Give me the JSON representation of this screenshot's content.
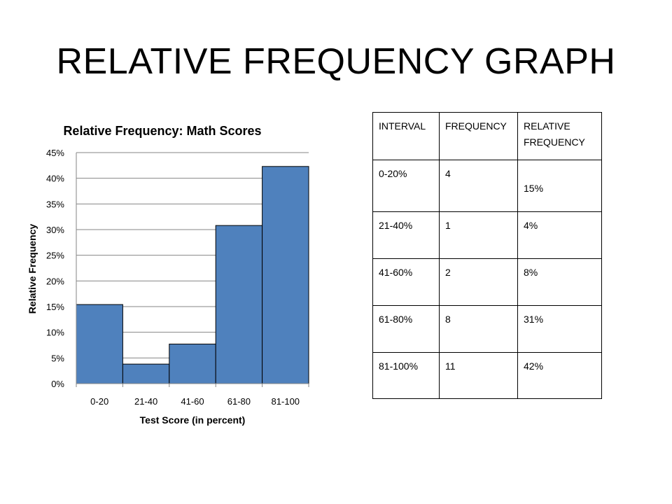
{
  "slide": {
    "title": "RELATIVE FREQUENCY GRAPH"
  },
  "chart_data": {
    "type": "bar",
    "title": "Relative Frequency: Math Scores",
    "xlabel": "Test Score (in percent)",
    "ylabel": "Relative Frequency",
    "categories": [
      "0-20",
      "21-40",
      "41-60",
      "61-80",
      "81-100"
    ],
    "values": [
      15.4,
      3.8,
      7.7,
      30.8,
      42.3
    ],
    "ylim": [
      0,
      45
    ],
    "yticks": [
      0,
      5,
      10,
      15,
      20,
      25,
      30,
      35,
      40,
      45
    ],
    "ytick_suffix": "%",
    "grid": true,
    "legend": "none",
    "colors": {
      "bar_fill": "#4f81bd",
      "bar_stroke": "#000000",
      "grid": "#868686",
      "axis": "#868686"
    }
  },
  "table": {
    "headers": [
      "INTERVAL",
      "FREQUENCY",
      "RELATIVE FREQUENCY"
    ],
    "rows": [
      [
        "0-20%",
        "4",
        "15%"
      ],
      [
        "21-40%",
        "1",
        "4%"
      ],
      [
        "41-60%",
        "2",
        "8%"
      ],
      [
        "61-80%",
        "8",
        "31%"
      ],
      [
        "81-100%",
        "11",
        "42%"
      ]
    ]
  }
}
